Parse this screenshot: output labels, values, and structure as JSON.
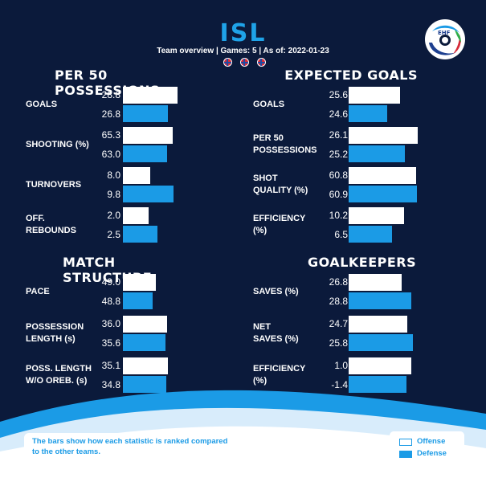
{
  "header": {
    "team": "ISL",
    "subtitle": "Team overview | Games: 5 | As of: 2022-01-23"
  },
  "colors": {
    "offense": "#ffffff",
    "defense": "#1b9be6",
    "background": "#0b1a3b",
    "accent": "#1fa3e8"
  },
  "sections": [
    {
      "title": "PER 50 POSSESSIONS",
      "rows": [
        {
          "label": [
            "GOALS"
          ],
          "off": "28.8",
          "def": "26.8",
          "off_rank": 0.62,
          "def_rank": 0.51
        },
        {
          "label": [
            "SHOOTING (%)"
          ],
          "off": "65.3",
          "def": "63.0",
          "off_rank": 0.56,
          "def_rank": 0.5
        },
        {
          "label": [
            "TURNOVERS"
          ],
          "off": "8.0",
          "def": "9.8",
          "off_rank": 0.31,
          "def_rank": 0.57
        },
        {
          "label": [
            "OFF.",
            "REBOUNDS"
          ],
          "off": "2.0",
          "def": "2.5",
          "off_rank": 0.29,
          "def_rank": 0.39
        }
      ]
    },
    {
      "title": "EXPECTED GOALS",
      "rows": [
        {
          "label": [
            "GOALS"
          ],
          "off": "25.6",
          "def": "24.6",
          "off_rank": 0.58,
          "def_rank": 0.44
        },
        {
          "label": [
            "PER 50",
            "POSSESSIONS"
          ],
          "off": "26.1",
          "def": "25.2",
          "off_rank": 0.78,
          "def_rank": 0.64
        },
        {
          "label": [
            "SHOT",
            "QUALITY (%)"
          ],
          "off": "60.8",
          "def": "60.9",
          "off_rank": 0.76,
          "def_rank": 0.77
        },
        {
          "label": [
            "EFFICIENCY",
            "(%)"
          ],
          "off": "10.2",
          "def": "6.5",
          "off_rank": 0.63,
          "def_rank": 0.49
        }
      ]
    },
    {
      "title": "MATCH STRUCTURE",
      "rows": [
        {
          "label": [
            "PACE"
          ],
          "off": "49.0",
          "def": "48.8",
          "off_rank": 0.37,
          "def_rank": 0.34
        },
        {
          "label": [
            "POSSESSION",
            "LENGTH (s)"
          ],
          "off": "36.0",
          "def": "35.6",
          "off_rank": 0.5,
          "def_rank": 0.48
        },
        {
          "label": [
            "POSS. LENGTH",
            "W/O OREB. (s)"
          ],
          "off": "35.1",
          "def": "34.8",
          "off_rank": 0.51,
          "def_rank": 0.49
        }
      ]
    },
    {
      "title": "GOALKEEPERS",
      "rows": [
        {
          "label": [
            "SAVES (%)"
          ],
          "off": "26.8",
          "def": "28.8",
          "off_rank": 0.6,
          "def_rank": 0.71
        },
        {
          "label": [
            "NET",
            "SAVES (%)"
          ],
          "off": "24.7",
          "def": "25.8",
          "off_rank": 0.66,
          "def_rank": 0.73
        },
        {
          "label": [
            "EFFICIENCY",
            "(%)"
          ],
          "off": "1.0",
          "def": "-1.4",
          "off_rank": 0.71,
          "def_rank": 0.65
        }
      ]
    }
  ],
  "footer": {
    "note": "The bars show how each statistic is ranked compared to the other teams.",
    "legend_offense": "Offense",
    "legend_defense": "Defense"
  }
}
